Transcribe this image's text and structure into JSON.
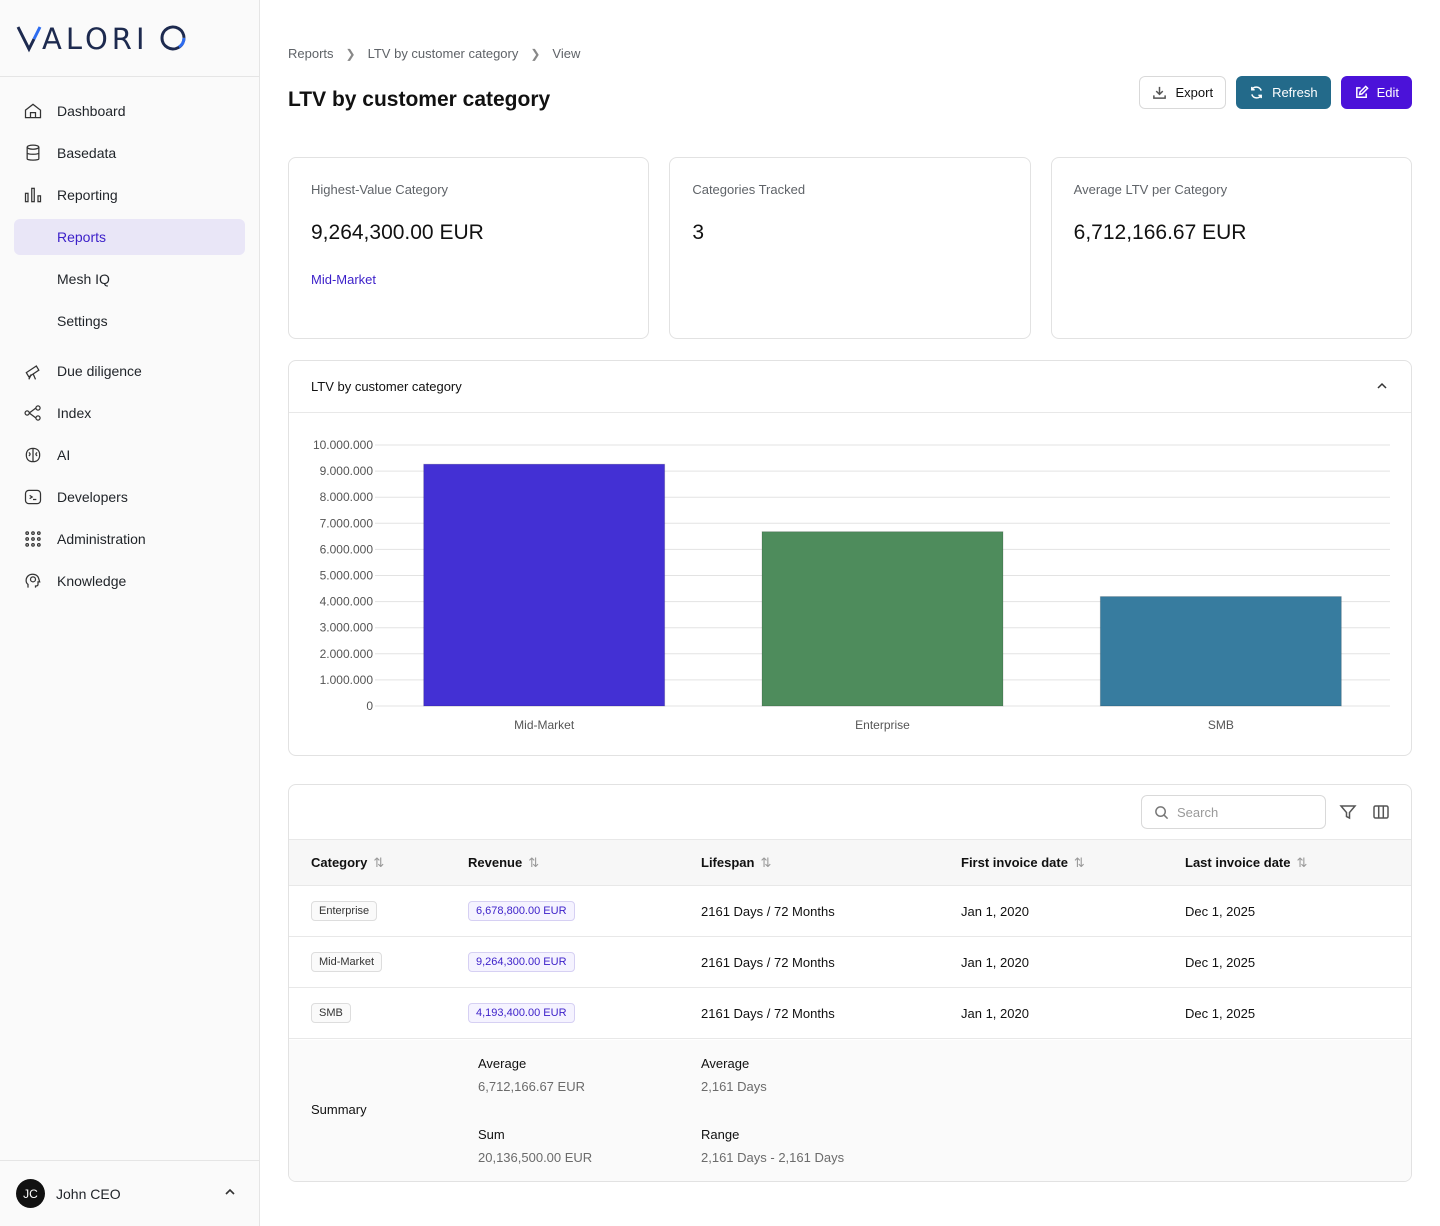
{
  "brand": {
    "logo_pre": "V",
    "logo_accent": "",
    "logo_text": "VALORIO"
  },
  "sidebar": {
    "items": [
      {
        "label": "Dashboard",
        "icon": "home-icon"
      },
      {
        "label": "Basedata",
        "icon": "database-icon"
      },
      {
        "label": "Reporting",
        "icon": "bar-chart-icon"
      },
      {
        "label": "Reports",
        "active": true
      },
      {
        "label": "Mesh IQ"
      },
      {
        "label": "Settings"
      },
      {
        "label": "Due diligence",
        "icon": "telescope-icon"
      },
      {
        "label": "Index",
        "icon": "network-icon"
      },
      {
        "label": "AI",
        "icon": "brain-icon"
      },
      {
        "label": "Developers",
        "icon": "terminal-icon"
      },
      {
        "label": "Administration",
        "icon": "grid-icon"
      },
      {
        "label": "Knowledge",
        "icon": "head-icon"
      }
    ]
  },
  "user": {
    "initials": "JC",
    "name": "John CEO"
  },
  "breadcrumb": [
    "Reports",
    "LTV by customer category",
    "View"
  ],
  "page": {
    "title": "LTV by customer category"
  },
  "actions": {
    "export": "Export",
    "refresh": "Refresh",
    "edit": "Edit"
  },
  "cards": [
    {
      "label": "Highest-Value Category",
      "value": "9,264,300.00 EUR",
      "link": "Mid-Market"
    },
    {
      "label": "Categories Tracked",
      "value": "3"
    },
    {
      "label": "Average LTV per Category",
      "value": "6,712,166.67 EUR"
    }
  ],
  "chart_panel": {
    "title": "LTV by customer category"
  },
  "chart_data": {
    "type": "bar",
    "categories": [
      "Mid-Market",
      "Enterprise",
      "SMB"
    ],
    "values": [
      9264300,
      6678800,
      4193400
    ],
    "colors": [
      "#4330d4",
      "#4e8c5c",
      "#377c9f"
    ],
    "ylim": [
      0,
      10000000
    ],
    "yticks": [
      "0",
      "1.000.000",
      "2.000.000",
      "3.000.000",
      "4.000.000",
      "5.000.000",
      "6.000.000",
      "7.000.000",
      "8.000.000",
      "9.000.000",
      "10.000.000"
    ],
    "grid": true
  },
  "table": {
    "search_placeholder": "Search",
    "columns": [
      "Category",
      "Revenue",
      "Lifespan",
      "First invoice date",
      "Last invoice date"
    ],
    "rows": [
      {
        "category": "Enterprise",
        "revenue": "6,678,800.00 EUR",
        "lifespan": "2161 Days / 72 Months",
        "first": "Jan 1, 2020",
        "last": "Dec 1, 2025"
      },
      {
        "category": "Mid-Market",
        "revenue": "9,264,300.00 EUR",
        "lifespan": "2161 Days / 72 Months",
        "first": "Jan 1, 2020",
        "last": "Dec 1, 2025"
      },
      {
        "category": "SMB",
        "revenue": "4,193,400.00 EUR",
        "lifespan": "2161 Days / 72 Months",
        "first": "Jan 1, 2020",
        "last": "Dec 1, 2025"
      }
    ],
    "summary": {
      "label": "Summary",
      "revenue_avg_label": "Average",
      "revenue_avg": "6,712,166.67 EUR",
      "revenue_sum_label": "Sum",
      "revenue_sum": "20,136,500.00 EUR",
      "lifespan_avg_label": "Average",
      "lifespan_avg": "2,161 Days",
      "lifespan_range_label": "Range",
      "lifespan_range": "2,161 Days - 2,161 Days"
    }
  }
}
